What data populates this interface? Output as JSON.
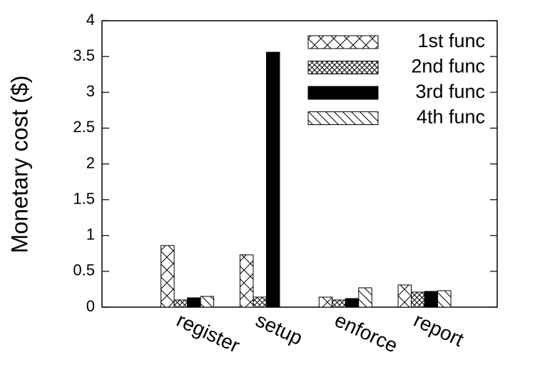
{
  "chart_data": {
    "type": "bar",
    "ylabel": "Monetary cost ($)",
    "categories": [
      "register",
      "setup",
      "enforce",
      "report"
    ],
    "series": [
      {
        "name": "1st func",
        "color": "#000000",
        "pattern": "crosshatch",
        "values": [
          0.86,
          0.73,
          0.14,
          0.31
        ]
      },
      {
        "name": "2nd func",
        "color": "#000000",
        "pattern": "dense-crosshatch",
        "values": [
          0.1,
          0.14,
          0.1,
          0.21
        ]
      },
      {
        "name": "3rd func",
        "color": "#000000",
        "pattern": "solid",
        "values": [
          0.13,
          3.56,
          0.12,
          0.22
        ]
      },
      {
        "name": "4th func",
        "color": "#000000",
        "pattern": "backslash",
        "values": [
          0.15,
          null,
          0.27,
          0.23
        ]
      }
    ],
    "ylim": [
      0,
      4
    ],
    "yticks": [
      0,
      0.5,
      1,
      1.5,
      2,
      2.5,
      3,
      3.5,
      4
    ],
    "legend": "top-right"
  }
}
